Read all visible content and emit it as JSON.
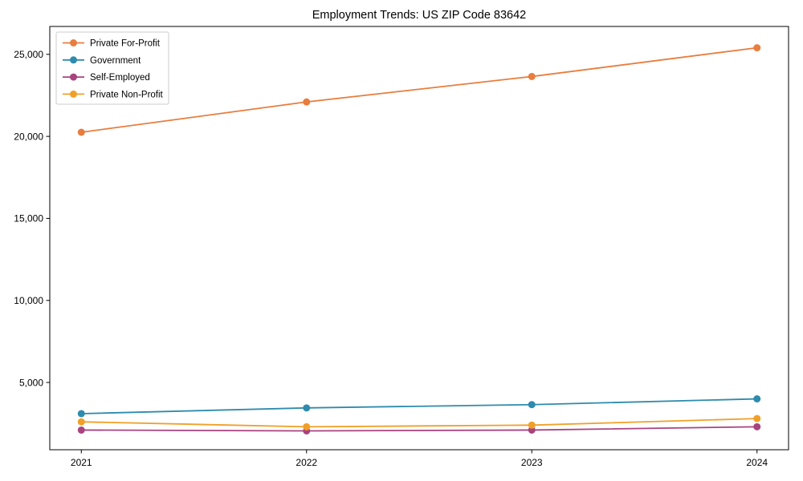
{
  "figure": {
    "background": "#ffffff",
    "axis_color": "#000000",
    "legend_border_color": "#cccccc",
    "legend_background": "#ffffff"
  },
  "chart_data": {
    "type": "line",
    "title": "Employment Trends: US ZIP Code 83642",
    "xlabel": "",
    "ylabel": "",
    "x": [
      2021,
      2022,
      2023,
      2024
    ],
    "x_tick_labels": [
      "2021",
      "2022",
      "2023",
      "2024"
    ],
    "y_ticks": [
      5000,
      10000,
      15000,
      20000,
      25000
    ],
    "y_tick_labels": [
      "5,000",
      "10,000",
      "15,000",
      "20,000",
      "25,000"
    ],
    "xlim": [
      2020.86,
      2024.14
    ],
    "ylim": [
      900,
      26700
    ],
    "grid": false,
    "marker": "circle",
    "legend_position": "upper-left",
    "series": [
      {
        "name": "Private For-Profit",
        "color": "#E87D3E",
        "values": [
          20250,
          22100,
          23650,
          25400
        ]
      },
      {
        "name": "Government",
        "color": "#2E8BAD",
        "values": [
          3100,
          3450,
          3650,
          4000
        ]
      },
      {
        "name": "Self-Employed",
        "color": "#A8437F",
        "values": [
          2100,
          2050,
          2100,
          2300
        ]
      },
      {
        "name": "Private Non-Profit",
        "color": "#F0A028",
        "values": [
          2600,
          2300,
          2400,
          2800
        ]
      }
    ]
  }
}
